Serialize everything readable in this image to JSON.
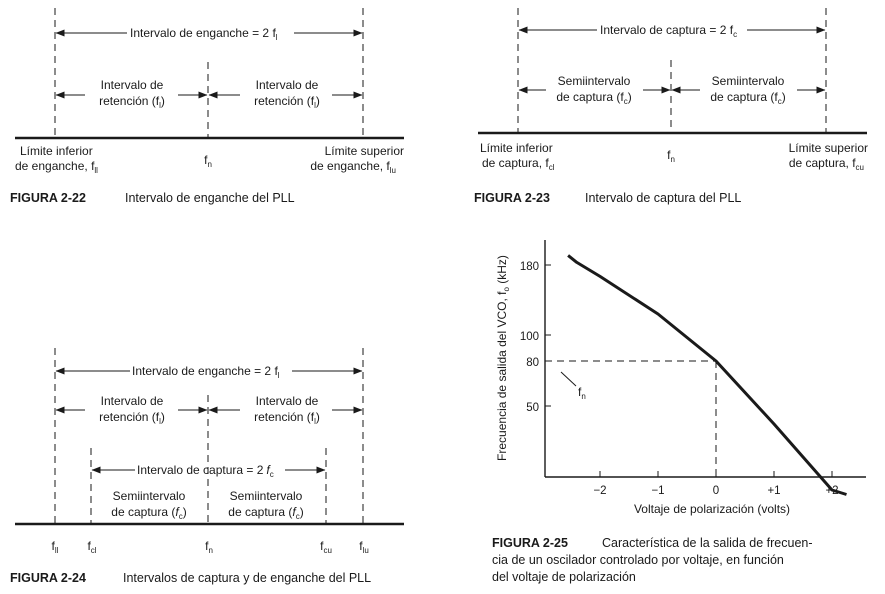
{
  "fig22": {
    "top_range": {
      "main": "Intervalo de enganche = 2 f",
      "sub": "l"
    },
    "left_label": [
      "Intervalo de",
      "retención (f",
      "l",
      ")"
    ],
    "right_label": [
      "Intervalo de",
      "retención (f",
      "l",
      ")"
    ],
    "left_limit": [
      "Límite inferior",
      "de enganche, f",
      "ll"
    ],
    "right_limit": [
      "Límite superior",
      "de enganche, f",
      "lu"
    ],
    "center": {
      "main": "f",
      "sub": "n"
    },
    "caption_num": "FIGURA 2-22",
    "caption_text": "Intervalo de enganche del PLL"
  },
  "fig23": {
    "top_range": {
      "main": "Intervalo de captura = 2 f",
      "sub": "c"
    },
    "left_label": [
      "Semiintervalo",
      "de captura (f",
      "c",
      ")"
    ],
    "right_label": [
      "Semiintervalo",
      "de captura (f",
      "c",
      ")"
    ],
    "left_limit": [
      "Límite inferior",
      "de captura, f",
      "cl"
    ],
    "right_limit": [
      "Límite superior",
      "de captura, f",
      "cu"
    ],
    "center": {
      "main": "f",
      "sub": "n"
    },
    "caption_num": "FIGURA 2-23",
    "caption_text": "Intervalo de captura del PLL"
  },
  "fig24": {
    "top_range": {
      "main": "Intervalo de enganche = 2 f",
      "sub": "l"
    },
    "left_label": [
      "Intervalo de",
      "retención (f",
      "l",
      ")"
    ],
    "right_label": [
      "Intervalo de",
      "retención (f",
      "l",
      ")"
    ],
    "capture_range": {
      "main": "Intervalo de captura = 2",
      "sym": "f",
      "sub": "c"
    },
    "left_half": [
      "Semiintervalo",
      "de captura (",
      "f",
      "c",
      ")"
    ],
    "right_half": [
      "Semiintervalo",
      "de captura (",
      "f",
      "c",
      ")"
    ],
    "freq_labels": [
      {
        "main": "f",
        "sub": "ll"
      },
      {
        "main": "f",
        "sub": "cl"
      },
      {
        "main": "f",
        "sub": "n"
      },
      {
        "main": "f",
        "sub": "cu"
      },
      {
        "main": "f",
        "sub": "lu"
      }
    ],
    "caption_num": "FIGURA 2-24",
    "caption_text": "Intervalos de captura y de enganche del PLL"
  },
  "fig25": {
    "ylabel": {
      "main": "Frecuencia de salida del VCO, f",
      "sub": "o",
      "tail": " (kHz)"
    },
    "xlabel": "Voltaje de polarización (volts)",
    "y_ticks": [
      "180",
      "100",
      "80",
      "50"
    ],
    "x_ticks": [
      "−2",
      "−1",
      "0",
      "+1",
      "+2"
    ],
    "fn_label": {
      "main": "f",
      "sub": "n"
    },
    "caption_num": "FIGURA 2-25",
    "caption_lines": [
      "Característica de la salida de frecuen-",
      "cia de un oscilador controlado por voltaje, en función",
      "del voltaje de polarización"
    ]
  },
  "chart_data": {
    "type": "line",
    "xlabel": "Voltaje de polarización (volts)",
    "ylabel": "Frecuencia de salida del VCO, fo (kHz)",
    "x_ticks": [
      -2,
      -1,
      0,
      1,
      2
    ],
    "y_ticks": [
      50,
      80,
      100,
      180
    ],
    "series": [
      {
        "x": [
          -2.55,
          -2.4,
          -2.0,
          -1.0,
          0.0,
          1.0,
          2.0,
          2.25
        ],
        "y": [
          191,
          183,
          167,
          124,
          80,
          38,
          -6,
          -9
        ]
      }
    ],
    "annotation": {
      "x": 0,
      "y": 80,
      "label": "fn"
    }
  }
}
